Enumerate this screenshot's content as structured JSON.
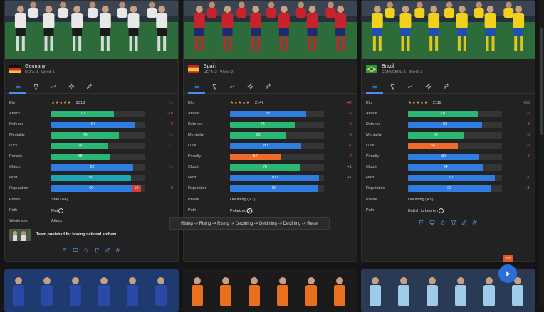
{
  "teams": [
    {
      "name": "Germany",
      "sub": "UEFA: 1 · World: 1",
      "colors": {
        "shirt": "#e8e8e8",
        "shorts": "#1a1a1a",
        "bg": "#2e6b3a",
        "flag": [
          "#111111",
          "#d92b2b",
          "#f2c230"
        ]
      },
      "elo": {
        "label": "Elo",
        "stars": "★★★★★",
        "value": "2318",
        "delta": "-1",
        "sign": "neg"
      },
      "stats": [
        {
          "label": "Attack",
          "value": 70,
          "display": "70",
          "color": "#2bb673",
          "delta": "-10",
          "sign": "neg"
        },
        {
          "label": "Defence",
          "value": 94,
          "display": "94",
          "color": "#2f7de1",
          "delta": "-2",
          "sign": "neg"
        },
        {
          "label": "Mentality",
          "value": 76,
          "display": "76",
          "color": "#2bb673",
          "delta": "-1",
          "sign": "neg"
        },
        {
          "label": "Luck",
          "value": 64,
          "display": "64",
          "color": "#2bb673",
          "delta": "-1",
          "sign": "neg"
        },
        {
          "label": "Penalty",
          "value": 65,
          "display": "65",
          "color": "#2bb673",
          "delta": "",
          "sign": "neg"
        },
        {
          "label": "Clutch",
          "value": 92,
          "display": "92",
          "color": "#2f7de1",
          "delta": "-1",
          "sign": "neg"
        },
        {
          "label": "Host",
          "value": 89,
          "display": "89",
          "color": "#1fa3b5",
          "delta": "",
          "sign": "neg"
        },
        {
          "label": "Reputation",
          "value": 90,
          "display": "90",
          "color": "#2f7de1",
          "delta": "-9",
          "sign": "neg",
          "overflow": "10"
        }
      ],
      "phase": {
        "label": "Phase",
        "value": "Stall (1/4)"
      },
      "path": {
        "label": "Path",
        "value": "Flat"
      },
      "weakness": {
        "label": "Weakness",
        "value": "Attack"
      },
      "news": "Team punished for booing national anthem"
    },
    {
      "name": "Spain",
      "sub": "UEFA: 2 · World: 2",
      "colors": {
        "shirt": "#c8232c",
        "shorts": "#1d2a6b",
        "bg": "#2e6b3a",
        "flag": [
          "#c8232c",
          "#f2c230",
          "#c8232c"
        ]
      },
      "elo": {
        "label": "Elo",
        "stars": "★★★★★",
        "value": "2147",
        "delta": "-42",
        "sign": "neg"
      },
      "stats": [
        {
          "label": "Attack",
          "value": 85,
          "display": "85",
          "color": "#2f7de1",
          "delta": "-5",
          "sign": "neg"
        },
        {
          "label": "Defence",
          "value": 73,
          "display": "73",
          "color": "#2bb673",
          "delta": "-5",
          "sign": "neg"
        },
        {
          "label": "Mentality",
          "value": 63,
          "display": "63",
          "color": "#2bb673",
          "delta": "-6",
          "sign": "neg"
        },
        {
          "label": "Luck",
          "value": 80,
          "display": "80",
          "color": "#2f7de1",
          "delta": "-1",
          "sign": "neg"
        },
        {
          "label": "Penalty",
          "value": 57,
          "display": "57",
          "color": "#f06a2a",
          "delta": "-7",
          "sign": "neg"
        },
        {
          "label": "Clutch",
          "value": 78,
          "display": "78",
          "color": "#2bb673",
          "delta": "+1",
          "sign": "pos"
        },
        {
          "label": "Host",
          "value": 100,
          "display": "100",
          "color": "#2f7de1",
          "delta": "+1",
          "sign": "pos"
        },
        {
          "label": "Reputation",
          "value": 99,
          "display": "99",
          "color": "#2f7de1",
          "delta": "",
          "sign": "neg"
        }
      ],
      "phase": {
        "label": "Phase",
        "value": "Declining (5/7)"
      },
      "path": {
        "label": "Path",
        "value": "Polarized"
      },
      "tooltip": "Rising -> Rising -> Rising -> Declining -> Declining -> Declining -> Reset"
    },
    {
      "name": "Brazil",
      "sub": "CONMEBOL: 1 · World: 3",
      "colors": {
        "shirt": "#f2d11c",
        "shorts": "#1f4fb5",
        "bg": "#2e6b3a",
        "flag": [
          "#1f9a46",
          "#f2d11c",
          "#1f4fb5"
        ]
      },
      "elo": {
        "label": "Elo",
        "stars": "★★★★★",
        "value": "2119",
        "delta": "+38",
        "sign": "pos"
      },
      "stats": [
        {
          "label": "Attack",
          "value": 78,
          "display": "78",
          "color": "#2bb673",
          "delta": "-5",
          "sign": "neg"
        },
        {
          "label": "Defence",
          "value": 83,
          "display": "83",
          "color": "#2f7de1",
          "delta": "-3",
          "sign": "neg"
        },
        {
          "label": "Mentality",
          "value": 62,
          "display": "62",
          "color": "#2bb673",
          "delta": "-5",
          "sign": "neg"
        },
        {
          "label": "Luck",
          "value": 56,
          "display": "56",
          "color": "#f06a2a",
          "delta": "-5",
          "sign": "neg"
        },
        {
          "label": "Penalty",
          "value": 80,
          "display": "80",
          "color": "#2f7de1",
          "delta": "-5",
          "sign": "neg"
        },
        {
          "label": "Clutch",
          "value": 84,
          "display": "84",
          "color": "#2f7de1",
          "delta": "",
          "sign": "neg"
        },
        {
          "label": "Host",
          "value": 97,
          "display": "97",
          "color": "#2f7de1",
          "delta": "-1",
          "sign": "neg"
        },
        {
          "label": "Reputation",
          "value": 93,
          "display": "93",
          "color": "#2f7de1",
          "delta": "+1",
          "sign": "pos"
        }
      ],
      "phase": {
        "label": "Phase",
        "value": "Declining (4/5)"
      },
      "path": {
        "label": "Path",
        "value": "Bullish to bearish"
      }
    }
  ],
  "tabs": [
    "list-icon",
    "trophy-icon",
    "trend-icon",
    "gear-icon",
    "pencil-icon"
  ],
  "action_icons": [
    "flag-icon",
    "monitor-icon",
    "hand-icon",
    "shirt-icon",
    "pen-icon",
    "people-icon"
  ],
  "fab": {
    "badge": "6/7",
    "icon": "play-icon"
  },
  "bottom_teams": [
    {
      "shirt": "#2b4aa8",
      "bg": "#1e3a6e"
    },
    {
      "shirt": "#e8701e",
      "bg": "#1b1b1b"
    },
    {
      "shirt": "#9fcbea",
      "bg": "#2a3a55"
    }
  ]
}
